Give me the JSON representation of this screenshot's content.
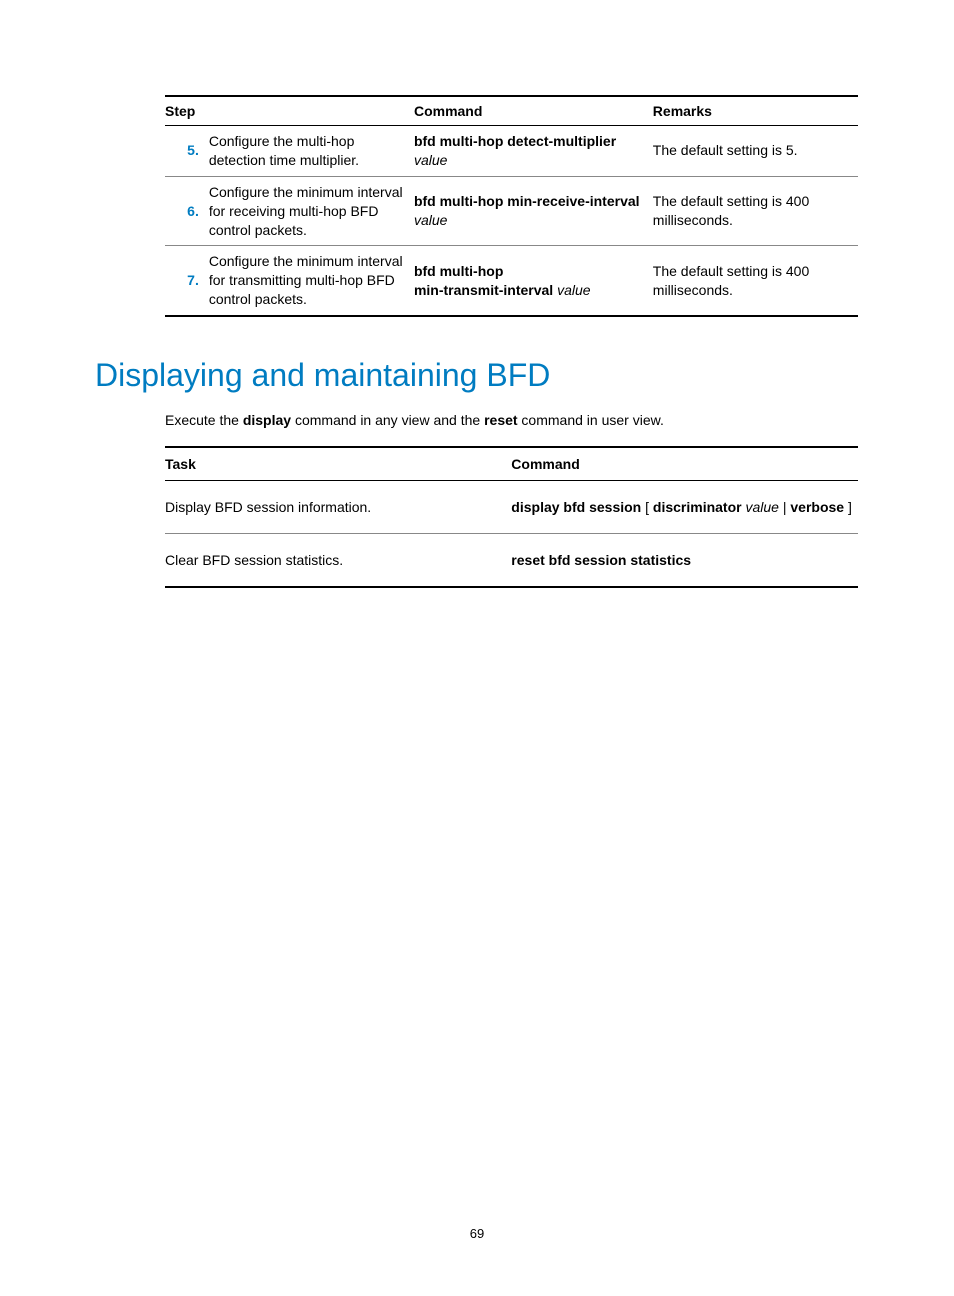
{
  "table1": {
    "headers": {
      "step": "Step",
      "command": "Command",
      "remarks": "Remarks"
    },
    "rows": [
      {
        "num": "5.",
        "desc": "Configure the multi-hop detection time multiplier.",
        "cmd_bold": "bfd multi-hop detect-multiplier",
        "cmd_italic": "value",
        "cmd_inline": false,
        "remarks": "The default setting is 5."
      },
      {
        "num": "6.",
        "desc": "Configure the minimum interval for receiving multi-hop BFD control packets.",
        "cmd_bold": "bfd multi-hop min-receive-interval",
        "cmd_italic": "value",
        "cmd_inline": false,
        "remarks": "The default setting is 400 milliseconds."
      },
      {
        "num": "7.",
        "desc": "Configure the minimum interval for transmitting multi-hop BFD control packets.",
        "cmd_bold1": "bfd multi-hop",
        "cmd_bold2": "min-transmit-interval",
        "cmd_italic": "value",
        "cmd_twoline": true,
        "remarks": "The default setting is 400 milliseconds."
      }
    ]
  },
  "heading": "Displaying and maintaining BFD",
  "intro": {
    "p1": "Execute the ",
    "b1": "display",
    "p2": " command in any view and the ",
    "b2": "reset",
    "p3": " command in user view."
  },
  "table2": {
    "headers": {
      "task": "Task",
      "command": "Command"
    },
    "rows": [
      {
        "task": "Display BFD session information.",
        "cmd_parts": [
          {
            "t": "display bfd session",
            "b": true
          },
          {
            "t": " [ "
          },
          {
            "t": "discriminator",
            "b": true
          },
          {
            "t": " "
          },
          {
            "t": "value",
            "i": true
          },
          {
            "t": " | "
          },
          {
            "t": "verbose",
            "b": true
          },
          {
            "t": " ]"
          }
        ]
      },
      {
        "task": "Clear BFD session statistics.",
        "cmd_parts": [
          {
            "t": "reset bfd session statistics",
            "b": true
          }
        ]
      }
    ]
  },
  "page_number": "69",
  "colors": {
    "accent": "#007cc1",
    "text": "#000000",
    "bg": "#ffffff"
  }
}
